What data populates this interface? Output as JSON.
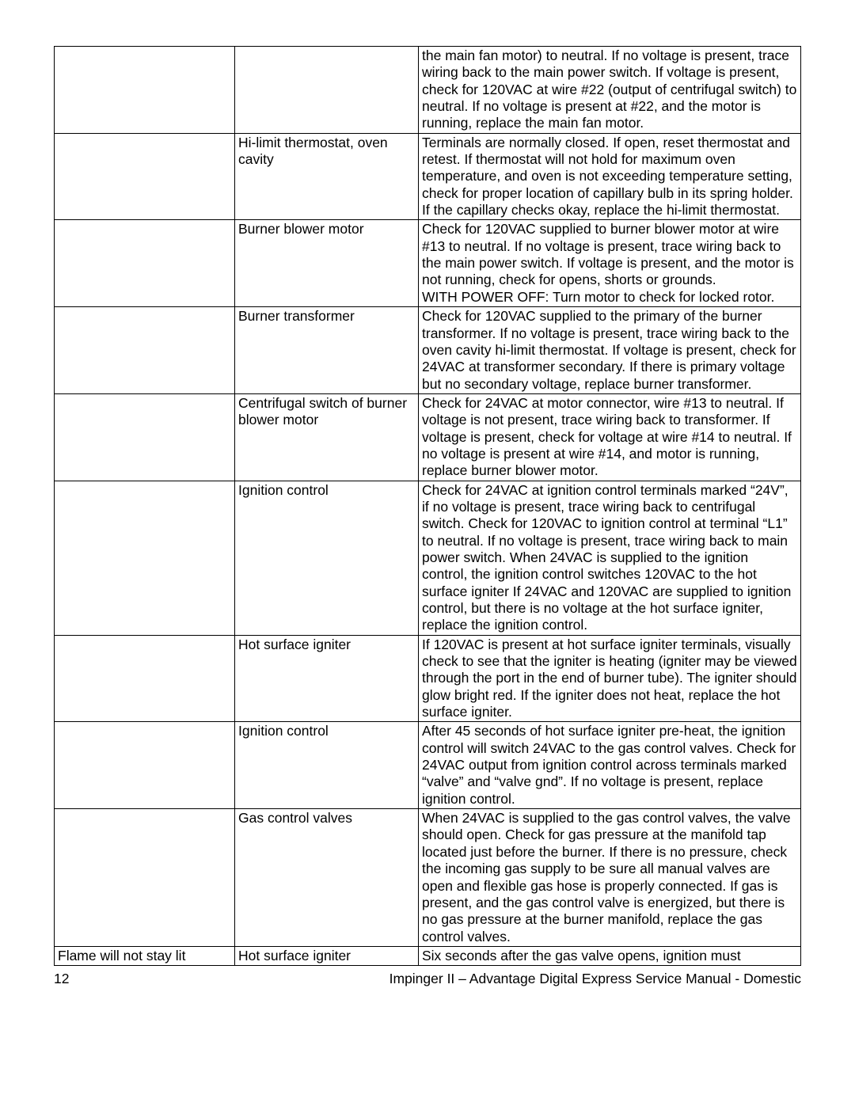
{
  "rows": [
    {
      "symptom": "",
      "cause": "",
      "remedy": "the main fan motor) to neutral. If no voltage is present, trace wiring back to the main power switch. If voltage is present, check for 120VAC at wire #22 (output of centrifugal switch) to neutral. If no voltage is present at #22, and the motor is running, replace the main fan motor."
    },
    {
      "symptom": "",
      "cause": "Hi-limit thermostat, oven cavity",
      "remedy": "Terminals are normally closed. If open, reset thermostat and retest. If thermostat will not hold for maximum oven temperature, and oven is not exceeding temperature setting, check for proper location of capillary bulb in its spring holder. If the capillary checks okay, replace the hi-limit thermostat."
    },
    {
      "symptom": "",
      "cause": "Burner blower motor",
      "remedy": "Check for 120VAC supplied to burner blower motor at wire #13 to neutral. If no voltage is present, trace wiring back to the main power switch. If voltage is present, and the motor is not running, check for opens, shorts or grounds.\nWITH POWER OFF: Turn motor to check for locked rotor."
    },
    {
      "symptom": "",
      "cause": "Burner transformer",
      "remedy": "Check for 120VAC supplied to the primary of the burner transformer. If no voltage is present, trace wiring back to the oven cavity hi-limit thermostat. If voltage is present, check for 24VAC at transformer secondary. If there is primary voltage but no secondary voltage, replace burner transformer."
    },
    {
      "symptom": "",
      "cause": "Centrifugal switch of burner blower motor",
      "remedy": "Check for 24VAC at motor connector, wire #13 to neutral. If voltage is not present, trace wiring back to transformer. If voltage is present, check for voltage at wire #14 to neutral. If no voltage is present at wire #14, and motor is running, replace burner blower motor."
    },
    {
      "symptom": "",
      "cause": "Ignition control",
      "remedy": "Check for 24VAC at ignition control terminals marked “24V”, if no voltage is present, trace wiring back to centrifugal switch. Check for 120VAC to ignition control at terminal “L1” to neutral. If no voltage is present, trace wiring back to main power switch. When 24VAC is supplied to the ignition control, the ignition control switches 120VAC to the hot surface igniter If 24VAC and 120VAC are supplied to ignition control, but there is no voltage at the hot surface igniter, replace the ignition control."
    },
    {
      "symptom": "",
      "cause": "Hot surface igniter",
      "remedy": "If 120VAC is present at hot surface igniter terminals, visually check to see that the igniter is heating (igniter may be viewed through the port in the end of burner tube). The igniter should glow bright red. If the igniter does not heat, replace the hot surface igniter."
    },
    {
      "symptom": "",
      "cause": "Ignition control",
      "remedy": "After 45 seconds of hot surface igniter pre-heat, the ignition control will switch 24VAC to the gas control valves. Check for 24VAC output from ignition control across terminals marked “valve” and “valve gnd”. If no voltage is present, replace ignition control."
    },
    {
      "symptom": "",
      "cause": "Gas control valves",
      "remedy": "When 24VAC is supplied to the gas control valves, the valve should open. Check for gas pressure at the manifold tap located just before the burner. If there is no pressure, check the incoming gas supply to be sure all manual valves are open and flexible gas hose is properly connected. If gas is present, and the gas control valve is energized, but there is no gas pressure at the burner manifold, replace the gas control valves."
    },
    {
      "symptom": "Flame will not stay lit",
      "cause": "Hot surface igniter",
      "remedy": "Six seconds after the gas valve opens, ignition must"
    }
  ],
  "footer": {
    "page": "12",
    "title": "Impinger II – Advantage Digital Express Service Manual - Domestic"
  }
}
